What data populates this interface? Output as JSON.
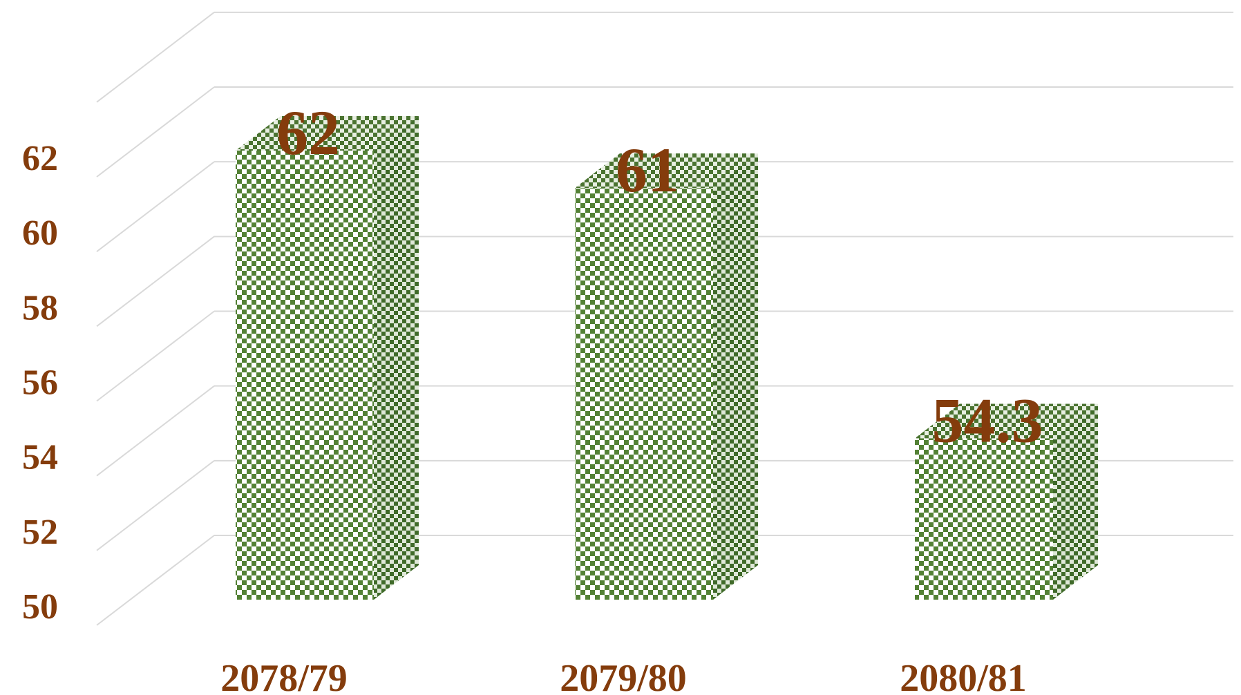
{
  "chart_data": {
    "type": "bar",
    "style": "3d-columns",
    "categories": [
      "2078/79",
      "2079/80",
      "2080/81"
    ],
    "values": [
      62,
      61,
      54.3
    ],
    "data_labels": [
      "62",
      "61",
      "54.3"
    ],
    "title": "",
    "xlabel": "",
    "ylabel": "",
    "ylim": [
      50,
      62
    ],
    "yticks": [
      50,
      52,
      54,
      56,
      58,
      60,
      62
    ],
    "grid": true,
    "legend": "none",
    "colors": {
      "bar": "#538135",
      "bar_light": "#ffffff",
      "label": "#843c0c",
      "grid": "#d9d9d9"
    }
  }
}
